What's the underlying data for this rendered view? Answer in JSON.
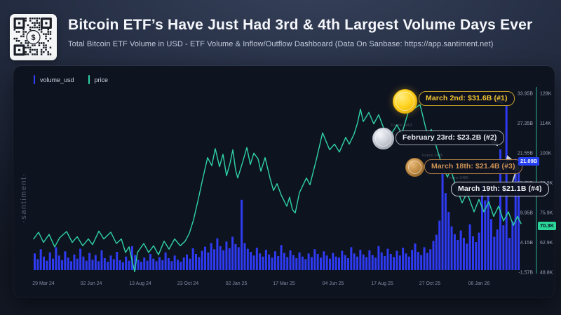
{
  "header": {
    "title": "Bitcoin ETF’s Have Just Had 3rd & 4th Largest Volume Days Ever",
    "subtitle": "Total Bitcoin ETF Volume in USD - ETF Volume & Inflow/Outflow Dashboard (Data On Sanbase: https://app.santiment.net)"
  },
  "watermark": "·santiment·",
  "legend": {
    "items": [
      {
        "label": "volume_usd",
        "color": "#3340FF"
      },
      {
        "label": "price",
        "color": "#2FD3A5"
      }
    ]
  },
  "annotations": [
    {
      "rank": 1,
      "medal": "gold",
      "label": "March 2nd: $31.6B (#1)",
      "text_color": "#F2C230",
      "border_color": "#C9A227"
    },
    {
      "rank": 2,
      "medal": "silver",
      "label": "February 23rd: $23.2B (#2)",
      "text_color": "#E8EBF1",
      "border_color": "#9AA1AD"
    },
    {
      "rank": 3,
      "medal": "bronze",
      "label": "March 18th: $21.4B (#3)",
      "text_color": "#CE9354",
      "border_color": "#A97B42"
    },
    {
      "rank": 4,
      "medal": "none",
      "label": "March 19th: $21.1B (#4)",
      "text_color": "#F2F4F8",
      "border_color": "#C6CBD4"
    }
  ],
  "artifacts": [
    "Frame 3463",
    "Frame 3485",
    "Frame 3486"
  ],
  "axis_badges": {
    "volume_current": {
      "label": "21.09B",
      "bg": "#2540F5"
    },
    "price_current": {
      "label": "70.3K",
      "bg": "#2BD699"
    }
  },
  "chart_data": {
    "type": "bar+line",
    "title": "Total Bitcoin ETF Volume in USD with BTC price overlay",
    "legend_position": "top-left",
    "grid": false,
    "x_axis": {
      "labels": [
        "29 Mar 24",
        "02 Jun 24",
        "13 Aug 24",
        "23 Oct 24",
        "02 Jan 25",
        "17 Mar 25",
        "04 Jun 25",
        "17 Aug 25",
        "27 Oct 25",
        "06 Jan 26"
      ]
    },
    "y_axis_volume": {
      "side": "right-inner",
      "unit": "USD billions",
      "tick_labels": [
        "33.95B",
        "27.35B",
        "21.55B",
        "15.75B",
        "9.95B",
        "4.15B",
        "-1.57B"
      ],
      "range": [
        "-1.57B",
        "33.95B"
      ],
      "current_value": "21.09B"
    },
    "y_axis_price": {
      "side": "right-outer",
      "unit": "USD thousands",
      "tick_labels": [
        "128K",
        "114K",
        "100K",
        "88.9K",
        "75.9K",
        "62.9K",
        "48.8K"
      ],
      "range": [
        "48.8K",
        "128K"
      ],
      "current_value": "70.3K"
    },
    "highlights": [
      {
        "rank": 1,
        "date": "March 2nd",
        "volume_usd_billions": 31.6
      },
      {
        "rank": 2,
        "date": "February 23rd",
        "volume_usd_billions": 23.2
      },
      {
        "rank": 3,
        "date": "March 18th",
        "volume_usd_billions": 21.4
      },
      {
        "rank": 4,
        "date": "March 19th",
        "volume_usd_billions": 21.1
      }
    ],
    "series": [
      {
        "name": "volume_usd",
        "type": "bar",
        "color": "#2E3BF2",
        "unit": "USD billions",
        "values": [
          3.2,
          2.1,
          4.0,
          2.6,
          1.8,
          3.4,
          2.2,
          4.4,
          2.8,
          1.9,
          3.6,
          2.4,
          1.7,
          3.0,
          2.2,
          4.1,
          2.6,
          1.8,
          3.3,
          2.0,
          2.9,
          1.7,
          3.8,
          2.3,
          1.6,
          2.8,
          2.1,
          3.5,
          1.9,
          1.5,
          2.6,
          1.8,
          4.6,
          2.9,
          2.0,
          1.6,
          2.4,
          1.8,
          3.1,
          2.2,
          1.7,
          2.5,
          1.9,
          3.4,
          2.3,
          1.7,
          2.8,
          2.0,
          1.6,
          2.4,
          3.0,
          2.2,
          4.2,
          3.1,
          2.5,
          3.7,
          4.5,
          3.4,
          5.2,
          4.0,
          6.1,
          4.6,
          3.8,
          5.5,
          4.2,
          6.4,
          5.0,
          4.4,
          13.5,
          5.2,
          4.1,
          3.5,
          2.8,
          4.3,
          3.2,
          2.6,
          3.9,
          3.0,
          2.4,
          3.6,
          2.7,
          4.8,
          3.3,
          2.5,
          3.8,
          2.9,
          2.3,
          3.4,
          2.6,
          2.1,
          3.2,
          2.5,
          4.0,
          3.1,
          2.4,
          3.6,
          2.8,
          2.2,
          3.3,
          2.6,
          2.4,
          3.7,
          2.9,
          2.3,
          4.4,
          3.2,
          2.6,
          3.9,
          3.0,
          2.5,
          3.8,
          2.9,
          2.4,
          4.6,
          3.4,
          2.7,
          4.1,
          3.1,
          2.5,
          3.7,
          2.8,
          4.3,
          3.2,
          2.6,
          3.9,
          5.1,
          3.5,
          2.9,
          4.4,
          3.3,
          4.0,
          5.6,
          6.8,
          9.5,
          18.5,
          14.8,
          11.2,
          8.4,
          6.9,
          5.8,
          7.6,
          6.2,
          5.1,
          8.8,
          6.5,
          5.4,
          7.2,
          16.8,
          13.4,
          15.6,
          9.8,
          6.4,
          7.8,
          23.2,
          8.6,
          31.6,
          6.2,
          9.4,
          21.4,
          21.09
        ]
      },
      {
        "name": "price",
        "type": "line",
        "color": "#2FD3A5",
        "unit": "USD thousands",
        "points": [
          [
            29,
            63.5
          ],
          [
            36,
            66.5
          ],
          [
            43,
            62
          ],
          [
            51,
            65.5
          ],
          [
            59,
            60
          ],
          [
            66,
            64
          ],
          [
            76,
            66.8
          ],
          [
            84,
            62
          ],
          [
            91,
            64.5
          ],
          [
            99,
            60.5
          ],
          [
            107,
            63.5
          ],
          [
            113,
            61
          ],
          [
            122,
            67
          ],
          [
            129,
            63.5
          ],
          [
            139,
            66.5
          ],
          [
            147,
            61.5
          ],
          [
            154,
            63.5
          ],
          [
            160,
            57.5
          ],
          [
            165,
            60
          ],
          [
            170,
            53
          ],
          [
            173,
            49
          ],
          [
            177,
            57.5
          ],
          [
            186,
            61.5
          ],
          [
            193,
            57.5
          ],
          [
            200,
            60.5
          ],
          [
            207,
            56.5
          ],
          [
            215,
            62.5
          ],
          [
            222,
            59
          ],
          [
            230,
            63.5
          ],
          [
            238,
            60.5
          ],
          [
            245,
            62.5
          ],
          [
            251,
            66
          ],
          [
            257,
            72
          ],
          [
            263,
            80
          ],
          [
            270,
            90
          ],
          [
            277,
            99.5
          ],
          [
            283,
            96
          ],
          [
            288,
            103.5
          ],
          [
            294,
            95.5
          ],
          [
            299,
            101
          ],
          [
            304,
            91.5
          ],
          [
            309,
            97
          ],
          [
            313,
            103
          ],
          [
            317,
            94
          ],
          [
            320,
            90.5
          ],
          [
            327,
            97.5
          ],
          [
            333,
            104
          ],
          [
            338,
            96.5
          ],
          [
            343,
            101.5
          ],
          [
            349,
            99
          ],
          [
            353,
            93.5
          ],
          [
            359,
            99.5
          ],
          [
            366,
            90.5
          ],
          [
            371,
            85
          ],
          [
            376,
            88
          ],
          [
            382,
            83
          ],
          [
            386,
            80.5
          ],
          [
            390,
            78
          ],
          [
            394,
            82
          ],
          [
            398,
            76.5
          ],
          [
            402,
            75
          ],
          [
            408,
            84
          ],
          [
            418,
            90.5
          ],
          [
            423,
            87.5
          ],
          [
            432,
            98.5
          ],
          [
            441,
            110.5
          ],
          [
            451,
            103
          ],
          [
            458,
            105.5
          ],
          [
            465,
            102
          ],
          [
            474,
            108.5
          ],
          [
            479,
            105.5
          ],
          [
            486,
            110
          ],
          [
            491,
            115
          ],
          [
            495,
            121
          ],
          [
            499,
            115.5
          ],
          [
            507,
            119.5
          ],
          [
            514,
            114.5
          ],
          [
            521,
            118.5
          ],
          [
            530,
            111
          ],
          [
            537,
            109
          ],
          [
            547,
            114
          ],
          [
            554,
            110
          ],
          [
            563,
            119.5
          ],
          [
            573,
            121.5
          ],
          [
            580,
            123
          ],
          [
            587,
            114
          ],
          [
            591,
            109
          ],
          [
            596,
            112
          ],
          [
            605,
            102.5
          ],
          [
            612,
            95.5
          ],
          [
            619,
            91
          ],
          [
            624,
            94
          ],
          [
            633,
            85
          ],
          [
            640,
            79.5
          ],
          [
            647,
            84
          ],
          [
            657,
            75.5
          ],
          [
            664,
            81
          ],
          [
            671,
            75.5
          ],
          [
            678,
            80
          ],
          [
            685,
            73.5
          ],
          [
            692,
            78
          ],
          [
            699,
            71.5
          ],
          [
            706,
            75.5
          ],
          [
            713,
            69.5
          ],
          [
            719,
            73.5
          ],
          [
            724,
            70.3
          ]
        ]
      }
    ]
  }
}
